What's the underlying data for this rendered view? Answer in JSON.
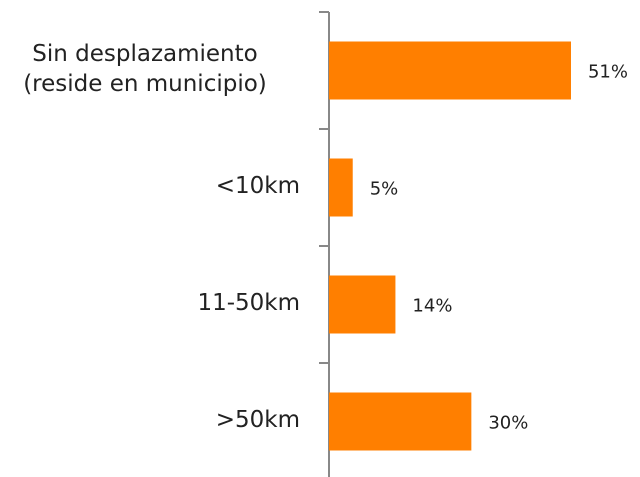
{
  "chart_data": {
    "type": "bar",
    "orientation": "horizontal",
    "categories": [
      "Sin desplazamiento\n(reside en municipio)",
      "<10km",
      "11-50km",
      ">50km"
    ],
    "values": [
      51,
      5,
      14,
      30
    ],
    "value_labels": [
      "51%",
      "5%",
      "14%",
      "30%"
    ],
    "color": "#ff7f00"
  }
}
